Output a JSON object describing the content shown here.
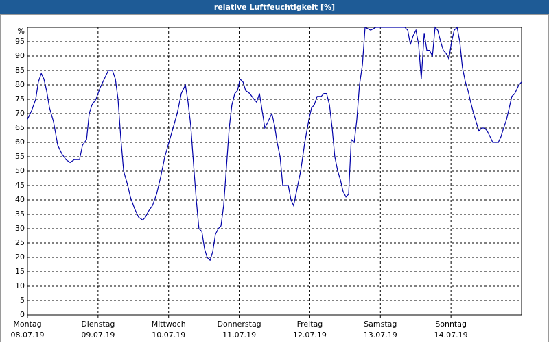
{
  "chart_data": {
    "type": "line",
    "title": "relative Luftfeuchtigkeit [%]",
    "xlim": [
      0,
      168
    ],
    "ylim": [
      0,
      100
    ],
    "xticks": [
      {
        "value": 0,
        "label": "Montag"
      },
      {
        "value": 24,
        "label": "Dienstag"
      },
      {
        "value": 48,
        "label": "Mittwoch"
      },
      {
        "value": 72,
        "label": "Donnerstag"
      },
      {
        "value": 96,
        "label": "Freitag"
      },
      {
        "value": 120,
        "label": "Samstag"
      },
      {
        "value": 144,
        "label": "Sonntag"
      }
    ],
    "xtick_dates": [
      "08.07.19",
      "09.07.19",
      "10.07.19",
      "11.07.19",
      "12.07.19",
      "13.07.19",
      "14.07.19"
    ],
    "yticks": [
      0,
      5,
      10,
      15,
      20,
      25,
      30,
      35,
      40,
      45,
      50,
      55,
      60,
      65,
      70,
      75,
      80,
      85,
      90,
      95,
      {
        "value": 100,
        "label": "%"
      }
    ],
    "grid": true,
    "series": [
      {
        "name": "relative Luftfeuchtigkeit",
        "color": "#0000a8",
        "x": [
          0,
          1.4,
          2.8,
          3.7,
          4.7,
          5.6,
          6.5,
          7.5,
          8.9,
          10.3,
          11.7,
          13.1,
          14.5,
          15.9,
          17.7,
          18.7,
          20.1,
          21,
          21.9,
          23.3,
          24.7,
          26.1,
          27.5,
          28.9,
          29.9,
          30.8,
          31.7,
          32.7,
          34.1,
          35,
          36.4,
          37.8,
          39.2,
          40.1,
          41.1,
          42.5,
          43.9,
          45.3,
          46.7,
          48.1,
          49.5,
          50.9,
          52.3,
          53.7,
          54.6,
          55.5,
          56.5,
          57.4,
          58.3,
          59.3,
          60.2,
          61.1,
          62.1,
          63,
          63.9,
          64.9,
          65.8,
          66.7,
          67.7,
          68.6,
          69.5,
          70.5,
          71.4,
          72.3,
          73.3,
          74.2,
          75.6,
          77,
          77.9,
          78.9,
          79.8,
          80.7,
          81.7,
          83.1,
          84,
          84.9,
          85.9,
          86.8,
          87.7,
          88.7,
          89.6,
          90.5,
          91.5,
          92.9,
          94.3,
          95.7,
          96.6,
          97.5,
          98.5,
          99.9,
          100.8,
          101.7,
          102.7,
          103.6,
          104.5,
          105.5,
          106.4,
          107.3,
          108.3,
          109.2,
          110.1,
          111.1,
          112,
          112.9,
          113.9,
          114.8,
          116.7,
          118.5,
          128.3,
          129.3,
          130.2,
          131.1,
          132.1,
          133,
          133.9,
          134.9,
          135.8,
          136.7,
          137.7,
          138.6,
          139.5,
          140.5,
          141.4,
          142.3,
          143.3,
          144.2,
          145.1,
          146.1,
          147,
          147.9,
          148.9,
          149.8,
          150.7,
          151.7,
          152.6,
          153.5,
          154.5,
          155.4,
          156.3,
          157.3,
          158.2,
          159.1,
          160.1,
          161,
          161.9,
          162.9,
          163.8,
          164.7,
          165.7,
          167.1,
          168
        ],
        "values": [
          68,
          71,
          75,
          81,
          84,
          82,
          78,
          72,
          67,
          59,
          56,
          54,
          53,
          54,
          54,
          59,
          61,
          70,
          73,
          75,
          79,
          82,
          85,
          85,
          82,
          75,
          62,
          50,
          45,
          41,
          37,
          34,
          33,
          34,
          36,
          38,
          42,
          48,
          55,
          60,
          65,
          70,
          77,
          80,
          74,
          66,
          52,
          40,
          30,
          29,
          23,
          20,
          19,
          22,
          28,
          30,
          31,
          38,
          52,
          65,
          73,
          77,
          78,
          82,
          81,
          78,
          77,
          75,
          74,
          77,
          71,
          65,
          67,
          70,
          66,
          60,
          55,
          45,
          45,
          45,
          40,
          38,
          43,
          50,
          60,
          68,
          72,
          73,
          76,
          76,
          77,
          77,
          73,
          65,
          55,
          50,
          47,
          43,
          41,
          42,
          61,
          60,
          68,
          80,
          87,
          100,
          99,
          100,
          100,
          99,
          94,
          97,
          99,
          94,
          82,
          98,
          92,
          92,
          90,
          100,
          99,
          95,
          92,
          91,
          89,
          95,
          99,
          100,
          95,
          86,
          81,
          78,
          74,
          70,
          67,
          64,
          65,
          65,
          64,
          62,
          60,
          60,
          60,
          62,
          65,
          68,
          72,
          76,
          77,
          80,
          81
        ]
      }
    ]
  }
}
